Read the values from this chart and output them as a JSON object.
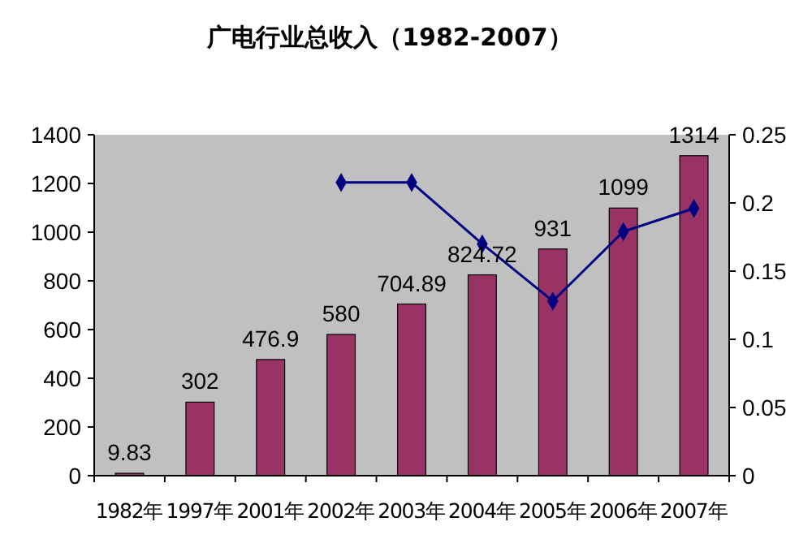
{
  "chart_data": {
    "type": "bar",
    "title": "广电行业总收入（1982-2007）",
    "categories": [
      "1982年",
      "1997年",
      "2001年",
      "2002年",
      "2003年",
      "2004年",
      "2005年",
      "2006年",
      "2007年"
    ],
    "series": [
      {
        "color": "#993366",
        "values": [
          9.83,
          302,
          476.9,
          580,
          704.89,
          824.72,
          931,
          1099,
          1314
        ]
      },
      {
        "type": "line",
        "axis": "y2",
        "color": "#000080",
        "marker": "diamond",
        "values": [
          null,
          null,
          null,
          0.215,
          0.215,
          0.17,
          0.128,
          0.179,
          0.196
        ]
      }
    ],
    "value_labels": [
      "9.83",
      "302",
      "476.9",
      "580",
      "704.89",
      "824.72",
      "931",
      "1099",
      "1314"
    ],
    "ylim": [
      0,
      1400
    ],
    "yticks": [
      0,
      200,
      400,
      600,
      800,
      1000,
      1200,
      1400
    ],
    "y2lim": [
      0,
      0.25
    ],
    "y2ticks": [
      0,
      0.05,
      0.1,
      0.15,
      0.2,
      0.25
    ],
    "grid": false
  }
}
